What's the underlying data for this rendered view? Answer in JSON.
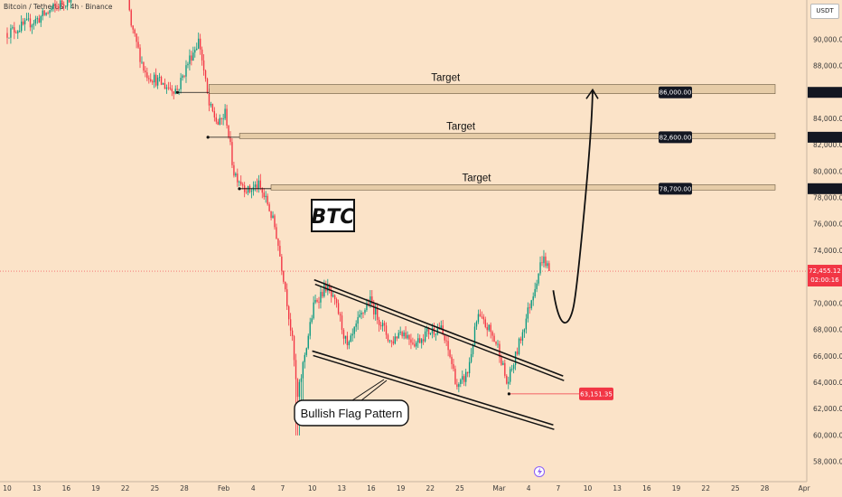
{
  "header": {
    "symbol_title": "Bitcoin / TetherUS · 4h · Binance"
  },
  "price_axis": {
    "currency_label": "USDT"
  },
  "chart_data": {
    "type": "candlestick",
    "title": "BTC",
    "y_axis": {
      "ticks": [
        "58,000.00",
        "60,000.00",
        "62,000.00",
        "64,000.00",
        "66,000.00",
        "68,000.00",
        "70,000.00",
        "72,000.00",
        "74,000.00",
        "76,000.00",
        "78,000.00",
        "80,000.00",
        "82,000.00",
        "84,000.00",
        "86,000.00",
        "88,000.00",
        "90,000.00"
      ],
      "tick_values": [
        58000,
        60000,
        62000,
        64000,
        66000,
        68000,
        70000,
        72000,
        74000,
        76000,
        78000,
        80000,
        82000,
        84000,
        86000,
        88000,
        90000
      ],
      "range": [
        56500,
        93000
      ]
    },
    "x_axis": {
      "ticks": [
        "10",
        "13",
        "16",
        "19",
        "22",
        "25",
        "28",
        "Feb",
        "4",
        "7",
        "10",
        "13",
        "16",
        "19",
        "22",
        "25",
        "Mar",
        "4",
        "7",
        "10",
        "13",
        "16",
        "19",
        "22",
        "25",
        "28",
        "Apr"
      ],
      "day_index_range": [
        0,
        82
      ],
      "tick_day_index": [
        0,
        3,
        6,
        9,
        12,
        15,
        18,
        22,
        25,
        28,
        31,
        34,
        37,
        40,
        43,
        46,
        50,
        53,
        56,
        59,
        62,
        65,
        68,
        71,
        74,
        77,
        81
      ]
    },
    "price_path": [
      [
        0,
        90500
      ],
      [
        3,
        91500
      ],
      [
        6,
        93000
      ],
      [
        9,
        95000
      ],
      [
        12,
        94500
      ],
      [
        12.6,
        91000
      ],
      [
        14,
        87500
      ],
      [
        16,
        86500
      ],
      [
        17.3,
        86200
      ],
      [
        18.5,
        88500
      ],
      [
        19.5,
        90000
      ],
      [
        20.5,
        85000
      ],
      [
        21.5,
        83500
      ],
      [
        22.2,
        84500
      ],
      [
        23,
        80000
      ],
      [
        24.5,
        78500
      ],
      [
        25.5,
        79000
      ],
      [
        26.5,
        77500
      ],
      [
        27.3,
        75500
      ],
      [
        28.2,
        71500
      ],
      [
        29,
        67000
      ],
      [
        29.5,
        62700
      ],
      [
        30.2,
        66000
      ],
      [
        31.2,
        70000
      ],
      [
        32.4,
        71300
      ],
      [
        33.6,
        69500
      ],
      [
        34.6,
        66500
      ],
      [
        35.6,
        68500
      ],
      [
        36.8,
        70300
      ],
      [
        38,
        68500
      ],
      [
        39,
        67000
      ],
      [
        40,
        68000
      ],
      [
        41.5,
        67000
      ],
      [
        42.6,
        67800
      ],
      [
        44,
        68200
      ],
      [
        45,
        66000
      ],
      [
        45.8,
        63500
      ],
      [
        46.8,
        64800
      ],
      [
        47.8,
        69000
      ],
      [
        49,
        68000
      ],
      [
        50,
        66500
      ],
      [
        50.8,
        63800
      ],
      [
        51.6,
        65800
      ],
      [
        52.6,
        68500
      ],
      [
        53.5,
        71000
      ],
      [
        54.4,
        73500
      ],
      [
        55.2,
        72455
      ]
    ],
    "series": [
      {
        "name": "Target",
        "value": 86000,
        "label": "86,000.00",
        "from_day": 17.3,
        "zone": [
          85900,
          86600
        ]
      },
      {
        "name": "Target",
        "value": 82600,
        "label": "82,600.00",
        "from_day": 20.4,
        "zone": [
          82500,
          82900
        ]
      },
      {
        "name": "Target",
        "value": 78700,
        "label": "78,700.00",
        "from_day": 23.6,
        "zone": [
          78600,
          79000
        ]
      }
    ],
    "current_price": {
      "label": "72,455.12",
      "value": 72455,
      "countdown": "02:00:16"
    },
    "low_marker": {
      "label": "63,151.35",
      "value": 63151,
      "from_day": 51.0,
      "to_day": 58.5
    },
    "pattern": {
      "label": "Bullish Flag Pattern",
      "upper_line": [
        [
          31.2,
          71800
        ],
        [
          56.5,
          64500
        ]
      ],
      "lower_line": [
        [
          31.0,
          66400
        ],
        [
          55.5,
          60800
        ]
      ]
    },
    "projection": [
      [
        55.5,
        71000
      ],
      [
        57.2,
        69800
      ],
      [
        58.5,
        76000
      ],
      [
        59.5,
        86200
      ]
    ],
    "event_icon": "lightning-icon",
    "colors": {
      "up": "#089981",
      "down": "#f23645",
      "bg": "#fbe3c8",
      "zone": "#d6ba8d",
      "label_bg": "#131722",
      "current": "#f23645"
    },
    "grid": false
  }
}
